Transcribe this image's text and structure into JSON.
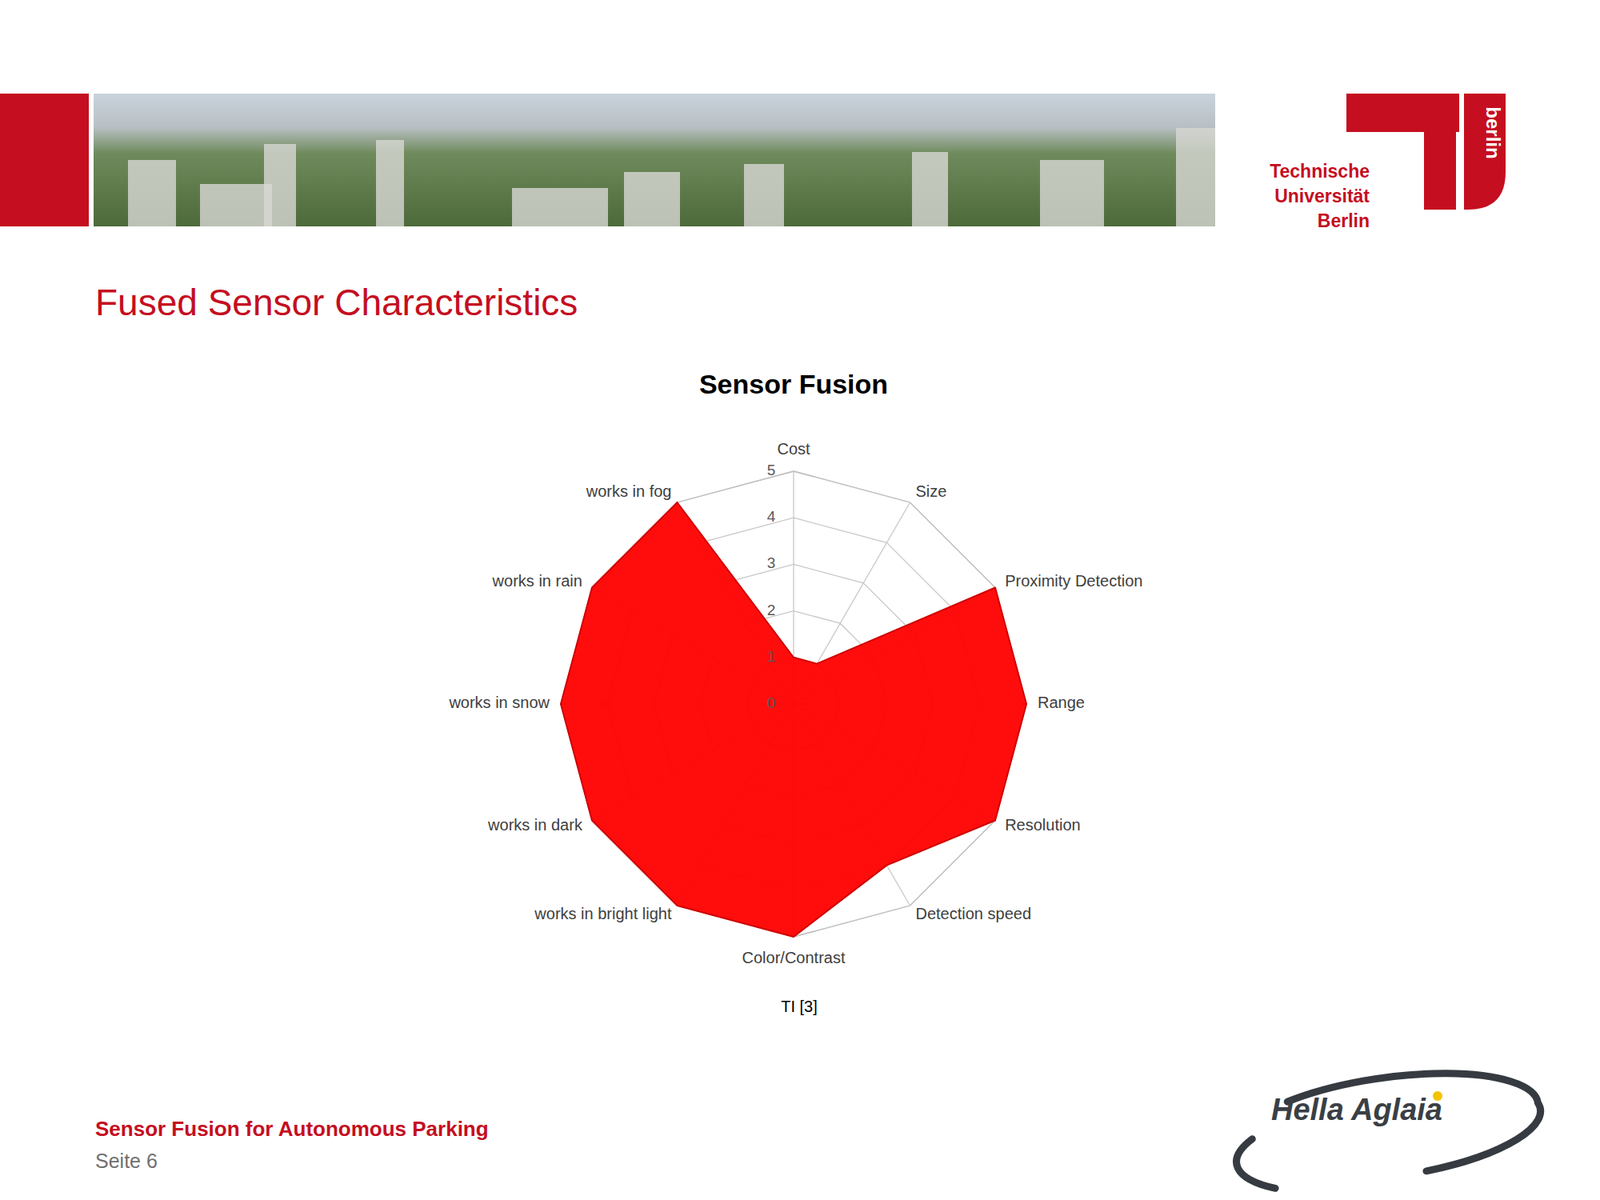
{
  "page": {
    "title": "Fused Sensor Characteristics",
    "footer": "Sensor Fusion for Autonomous Parking",
    "page_label": "Seite 6",
    "source": "TI [3]",
    "university": [
      "Technische",
      "Universität",
      "Berlin"
    ],
    "university_badge": "berlin",
    "company": "Hella Aglaia"
  },
  "chart_data": {
    "type": "radar",
    "title": "Sensor Fusion",
    "categories": [
      "Cost",
      "Size",
      "Proximity Detection",
      "Range",
      "Resolution",
      "Detection speed",
      "Color/Contrast",
      "works in bright light",
      "works in dark",
      "works in snow",
      "works in rain",
      "works in fog"
    ],
    "values": [
      1,
      1,
      5,
      5,
      5,
      4,
      5,
      5,
      5,
      5,
      5,
      5
    ],
    "color": "#ff0000",
    "ylim": [
      0,
      5
    ],
    "yticks": [
      0,
      1,
      2,
      3,
      4,
      5
    ],
    "grid": true
  }
}
